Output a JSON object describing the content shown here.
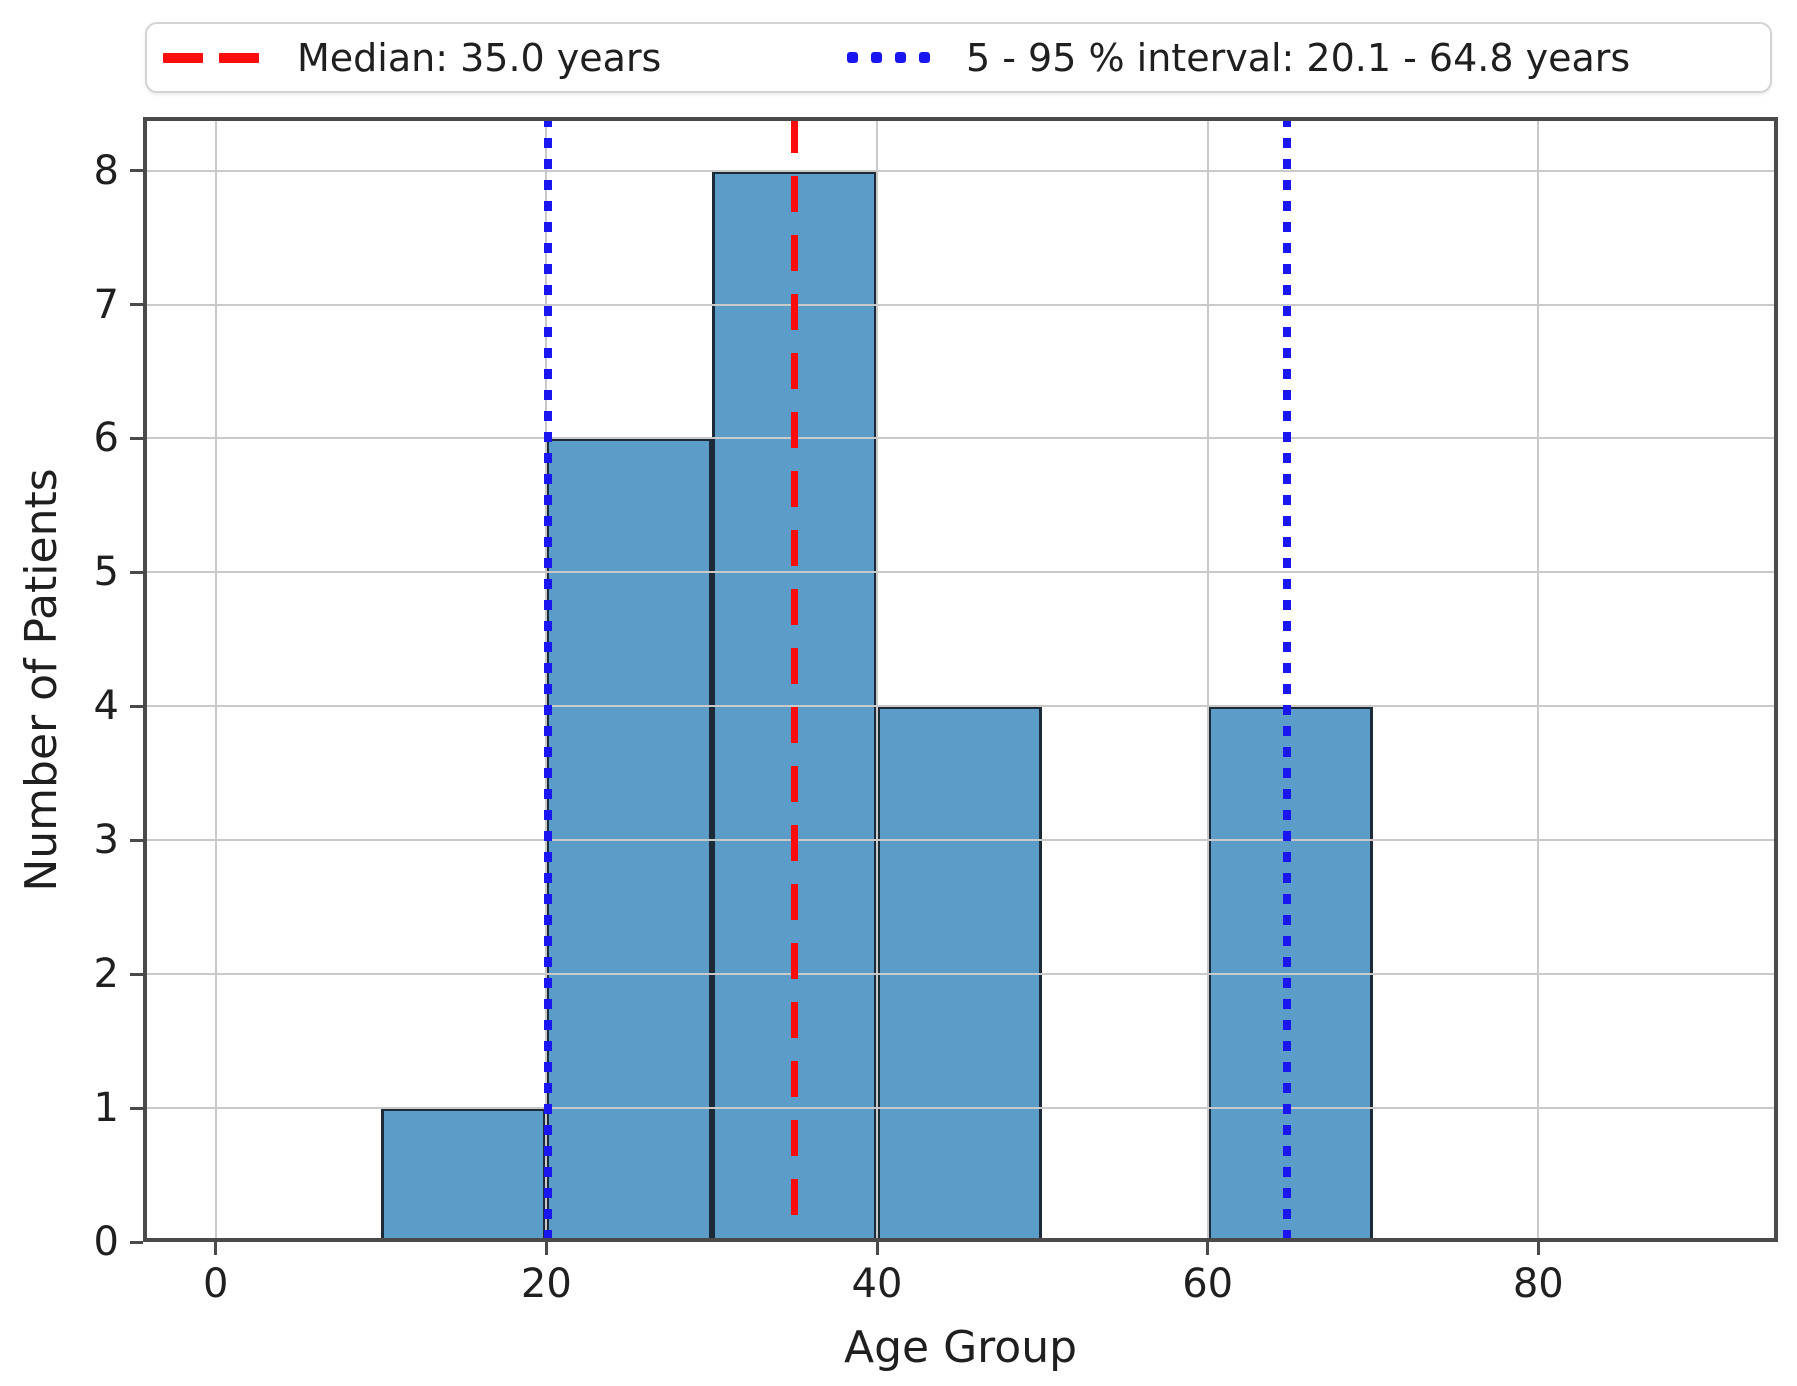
{
  "legend": {
    "items": [
      {
        "label": "Median: 35.0 years",
        "marker": "red-dashed-line"
      },
      {
        "label": "5 - 95 % interval: 20.1 - 64.8 years",
        "marker": "blue-dotted-line"
      }
    ]
  },
  "chart_data": {
    "type": "bar",
    "subtype": "histogram",
    "title": "",
    "xlabel": "Age Group",
    "ylabel": "Number of Patients",
    "bins": [
      {
        "x0": 10,
        "x1": 20,
        "count": 1
      },
      {
        "x0": 20,
        "x1": 30,
        "count": 6
      },
      {
        "x0": 30,
        "x1": 40,
        "count": 8
      },
      {
        "x0": 40,
        "x1": 50,
        "count": 4
      },
      {
        "x0": 60,
        "x1": 70,
        "count": 4
      }
    ],
    "x_ticks": [
      0,
      20,
      40,
      60,
      80
    ],
    "y_ticks": [
      0,
      1,
      2,
      3,
      4,
      5,
      6,
      7,
      8
    ],
    "xlim": [
      -4.4,
      94.5
    ],
    "ylim": [
      0,
      8.4
    ],
    "grid": true,
    "legend_position": "top",
    "annotations": {
      "median": {
        "value": 35.0,
        "style": "dashed",
        "label": "Median: 35.0 years"
      },
      "interval": {
        "low": 20.1,
        "high": 64.8,
        "style": "dotted",
        "label": "5 - 95 % interval: 20.1 - 64.8 years"
      }
    },
    "colors": {
      "bar_fill": "#5b9cc8",
      "bar_edge": "#1d2b38",
      "grid": "#c9c9c9",
      "spine": "#4a4a4a",
      "median_line": "#fb0d0d",
      "interval_line": "#1a16f0",
      "text": "#1f1f1f"
    }
  }
}
